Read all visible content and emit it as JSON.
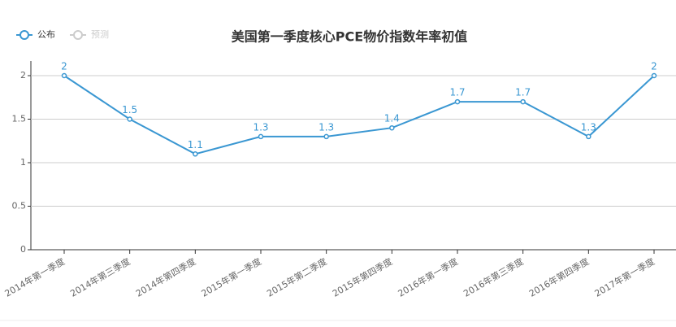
{
  "chart_data": {
    "type": "line",
    "title": "美国第一季度核心PCE物价指数年率初值",
    "categories": [
      "2014年第一季度",
      "2014年第三季度",
      "2014年第四季度",
      "2015年第一季度",
      "2015年第二季度",
      "2015年第四季度",
      "2016年第一季度",
      "2016年第三季度",
      "2016年第四季度",
      "2017年第一季度"
    ],
    "series": [
      {
        "name": "公布",
        "color": "#3a97d2",
        "values": [
          2,
          1.5,
          1.1,
          1.3,
          1.3,
          1.4,
          1.7,
          1.7,
          1.3,
          2
        ]
      },
      {
        "name": "预测",
        "color": "#cccccc",
        "values": [
          null,
          null,
          null,
          null,
          null,
          null,
          null,
          null,
          null,
          null
        ]
      }
    ],
    "ylim": [
      0,
      2
    ],
    "yticks": [
      0,
      0.5,
      1,
      1.5,
      2
    ],
    "grid": true
  }
}
